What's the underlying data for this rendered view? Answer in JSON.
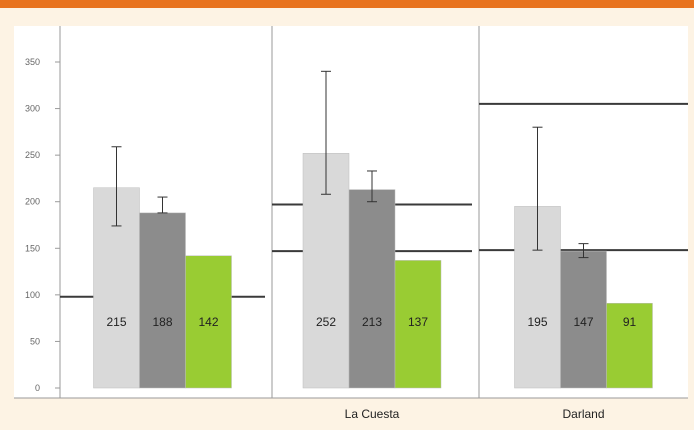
{
  "chart_data": {
    "type": "bar",
    "series": [
      {
        "name": "",
        "color": "#d9d9d9"
      },
      {
        "name": "",
        "color": "#8c8c8c"
      },
      {
        "name": "",
        "color": "#99cc33"
      }
    ],
    "panels": [
      {
        "label": "",
        "values": [
          215,
          188,
          142
        ],
        "labels": [
          "215",
          "188",
          "142"
        ],
        "errors": [
          [
            174,
            259
          ],
          [
            188,
            205
          ],
          null
        ],
        "bands": [
          98
        ]
      },
      {
        "label": "La Cuesta",
        "values": [
          252,
          213,
          137
        ],
        "labels": [
          "252",
          "213",
          "137"
        ],
        "errors": [
          [
            208,
            340
          ],
          [
            200,
            233
          ],
          null
        ],
        "bands": [
          147,
          197
        ]
      },
      {
        "label": "Darland",
        "values": [
          195,
          147,
          91
        ],
        "labels": [
          "195",
          "147",
          "91"
        ],
        "errors": [
          [
            148,
            280
          ],
          [
            140,
            155
          ],
          null
        ],
        "bands": [
          148,
          305
        ]
      }
    ],
    "ylim": [
      0,
      350
    ],
    "yticks": [
      0,
      50,
      100,
      150,
      200,
      250,
      300,
      350
    ],
    "grid": false,
    "legend_position": "top"
  },
  "colors": {
    "top_bar": "#e8731f",
    "background": "#fdf3e4",
    "panel_bg": "#ffffff",
    "band_line": "#3a3a3a",
    "axis_line": "#9a9a9a",
    "error_line": "#333333"
  }
}
